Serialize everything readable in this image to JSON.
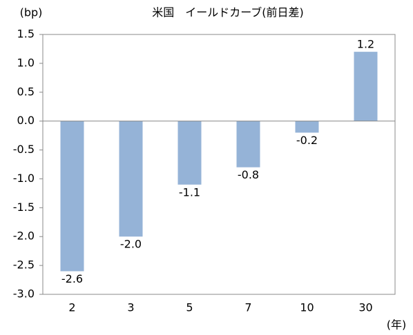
{
  "chart_data": {
    "type": "bar",
    "title": "米国　イールドカーブ(前日差)",
    "y_label": "(bp)",
    "x_label": "(年)",
    "categories": [
      "2",
      "3",
      "5",
      "7",
      "10",
      "30"
    ],
    "values": [
      -2.6,
      -2.0,
      -1.1,
      -0.8,
      -0.2,
      1.2
    ],
    "value_labels": [
      "-2.6",
      "-2.0",
      "-1.1",
      "-0.8",
      "-0.2",
      "1.2"
    ],
    "color": "#95b3d7",
    "ylim": [
      -3.0,
      1.5
    ],
    "yticks": [
      {
        "value": 1.5,
        "label": "1.5"
      },
      {
        "value": 1.0,
        "label": "1.0"
      },
      0.5,
      {
        "value": 0,
        "label": "0.0"
      },
      -0.5,
      {
        "value": -1.0,
        "label": "-1.0"
      },
      -1.5,
      {
        "value": -2.0,
        "label": "-2.0"
      },
      -2.5,
      {
        "value": -3.0,
        "label": "-3.0"
      }
    ],
    "grid": false
  }
}
